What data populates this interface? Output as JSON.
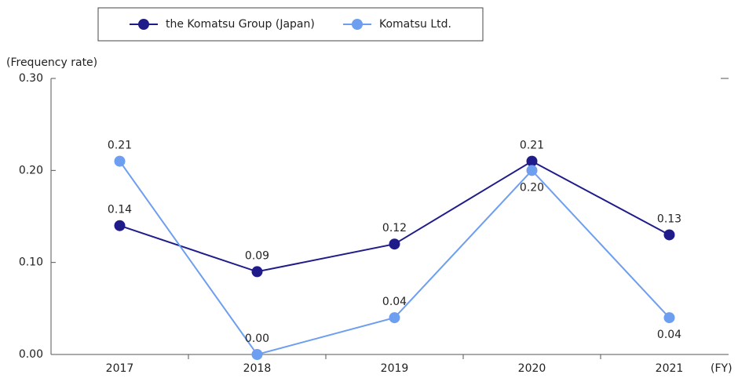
{
  "chart_data": {
    "type": "line",
    "y_label": "(Frequency rate)",
    "x_label": "(FY)",
    "categories": [
      "2017",
      "2018",
      "2019",
      "2020",
      "2021"
    ],
    "series": [
      {
        "name": "the Komatsu Group (Japan)",
        "color": "#1f1c8a",
        "values": [
          0.14,
          0.09,
          0.12,
          0.21,
          0.13
        ],
        "value_labels": [
          "0.14",
          "0.09",
          "0.12",
          "0.21",
          "0.13"
        ]
      },
      {
        "name": "Komatsu Ltd.",
        "color": "#6d9ef0",
        "values": [
          0.21,
          0.0,
          0.04,
          0.2,
          0.04
        ],
        "value_labels": [
          "0.21",
          "0.00",
          "0.04",
          "0.20",
          "0.04"
        ]
      }
    ],
    "ylim": [
      0,
      0.3
    ],
    "yticks": [
      {
        "value": 0,
        "label": "0.00"
      },
      {
        "value": 0.1,
        "label": "0.10"
      },
      {
        "value": 0.2,
        "label": "0.20"
      },
      {
        "value": 0.3,
        "label": "0.30"
      }
    ],
    "legend": "top"
  }
}
